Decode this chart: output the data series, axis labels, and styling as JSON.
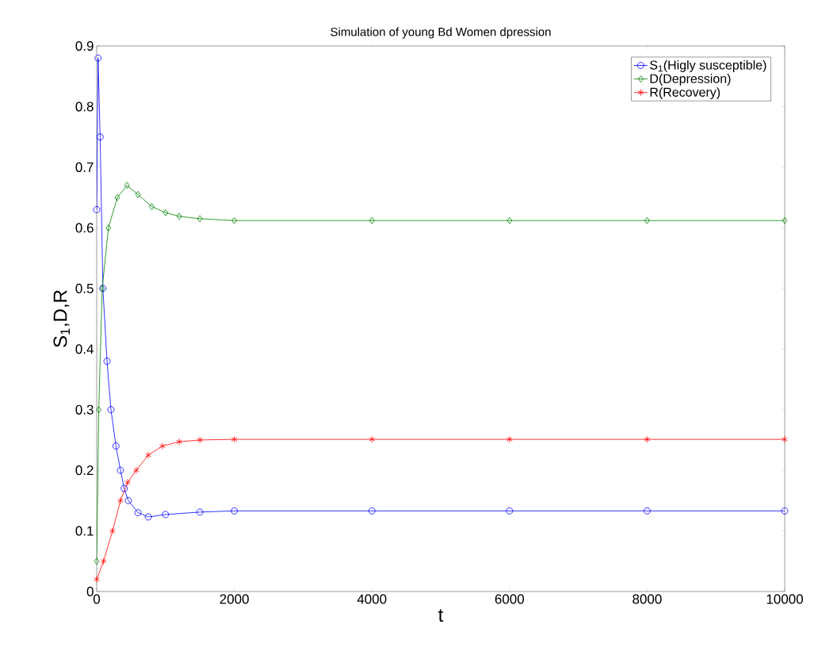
{
  "chart_data": {
    "type": "line",
    "title": "Simulation  of young Bd Women dpression",
    "xlabel": "t",
    "ylabel": "S$_{1}$,D,R",
    "xlim": [
      0,
      10000
    ],
    "ylim": [
      0,
      0.9
    ],
    "xticks": [
      0,
      2000,
      4000,
      6000,
      8000,
      10000
    ],
    "yticks": [
      0,
      0.1,
      0.2,
      0.3,
      0.4,
      0.5,
      0.6,
      0.7,
      0.8,
      0.9
    ],
    "legend": "top right",
    "grid": false,
    "series": [
      {
        "name": "S$_{1}$(Higly susceptible)",
        "color": "#0000ff",
        "marker": "circle",
        "x": [
          0,
          20,
          50,
          90,
          150,
          207,
          280,
          345,
          400,
          460,
          600,
          750,
          1000,
          1500,
          2000,
          4000,
          6000,
          8000,
          10000
        ],
        "values": [
          0.63,
          0.88,
          0.75,
          0.5,
          0.38,
          0.3,
          0.24,
          0.2,
          0.17,
          0.15,
          0.13,
          0.123,
          0.127,
          0.131,
          0.133,
          0.133,
          0.133,
          0.133,
          0.133
        ]
      },
      {
        "name": "D(Depression)",
        "color": "#008000",
        "marker": "diamond",
        "x": [
          0,
          30,
          80,
          170,
          300,
          440,
          600,
          800,
          1000,
          1200,
          1500,
          2000,
          4000,
          6000,
          8000,
          10000
        ],
        "values": [
          0.05,
          0.3,
          0.5,
          0.6,
          0.65,
          0.67,
          0.655,
          0.635,
          0.625,
          0.619,
          0.615,
          0.612,
          0.612,
          0.612,
          0.612,
          0.612
        ]
      },
      {
        "name": "R(Recovery)",
        "color": "#ff0000",
        "marker": "cross",
        "x": [
          0,
          100,
          230,
          345,
          450,
          575,
          750,
          955,
          1200,
          1500,
          2000,
          4000,
          6000,
          8000,
          10000
        ],
        "values": [
          0.02,
          0.05,
          0.1,
          0.15,
          0.18,
          0.2,
          0.225,
          0.24,
          0.247,
          0.25,
          0.251,
          0.251,
          0.251,
          0.251,
          0.251
        ]
      }
    ]
  }
}
